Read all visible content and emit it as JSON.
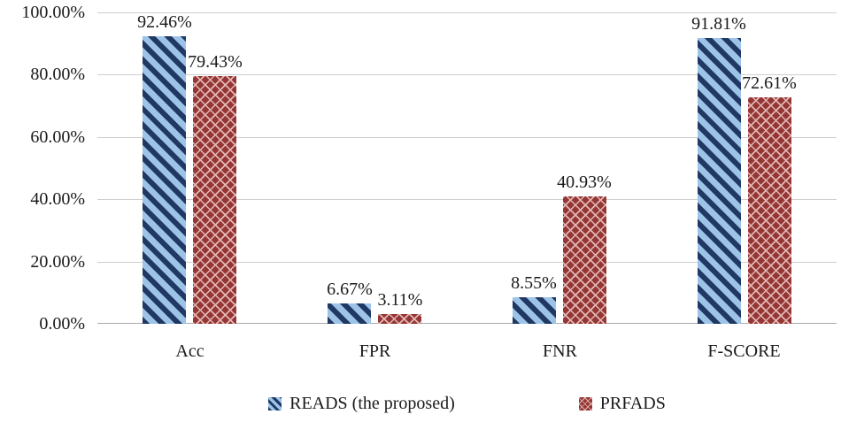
{
  "chart_data": {
    "type": "bar",
    "title": "",
    "categories": [
      "Acc",
      "FPR",
      "FNR",
      "F-SCORE"
    ],
    "series": [
      {
        "name": "READS (the proposed)",
        "values": [
          92.46,
          6.67,
          8.55,
          91.81
        ],
        "labels": [
          "92.46%",
          "6.67%",
          "8.55%",
          "91.81%"
        ],
        "pattern": "diagonal-stripes",
        "base_color": "#9dc3e6",
        "pattern_color": "#1f3864"
      },
      {
        "name": "PRFADS",
        "values": [
          79.43,
          3.11,
          40.93,
          72.61
        ],
        "labels": [
          "79.43%",
          "3.11%",
          "40.93%",
          "72.61%"
        ],
        "pattern": "diamond-lattice",
        "base_color": "#943634",
        "pattern_color": "#e3b7b6"
      }
    ],
    "y_ticks": [
      "0.00%",
      "20.00%",
      "40.00%",
      "60.00%",
      "80.00%",
      "100.00%"
    ],
    "ylim": [
      0,
      100
    ],
    "grid": true,
    "legend_position": "bottom",
    "gridline_color": "#cfcfcf",
    "text_color": "#1a1a1a"
  }
}
